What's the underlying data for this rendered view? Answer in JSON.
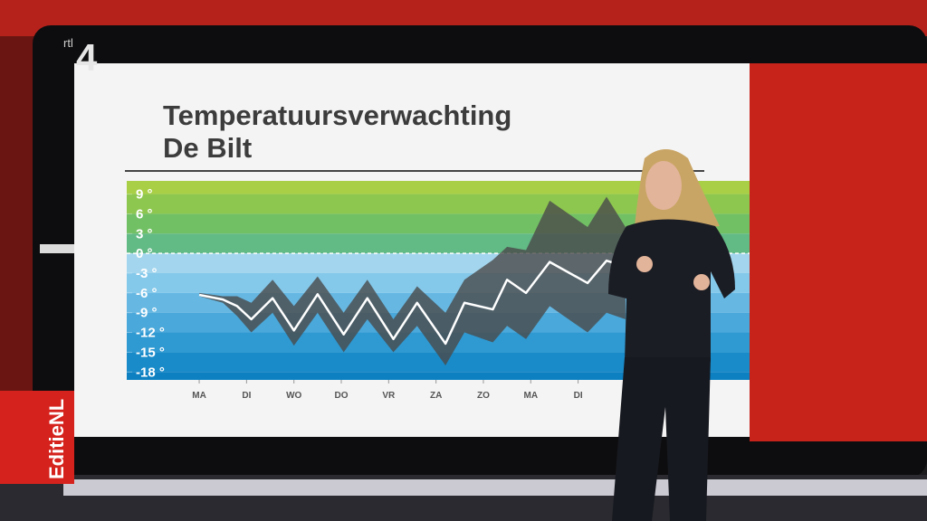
{
  "channel_logo": "rtl",
  "channel_number": "4",
  "program_badge": "EditieNL",
  "chart_data": {
    "type": "line",
    "title": [
      "Temperatuursverwachting",
      "De Bilt"
    ],
    "xlim": [
      -1.53,
      11.62
    ],
    "xticks": [
      {
        "value": 0,
        "label": "MA"
      },
      {
        "value": 1,
        "label": "DI"
      },
      {
        "value": 2,
        "label": "WO"
      },
      {
        "value": 3,
        "label": "DO"
      },
      {
        "value": 4,
        "label": "VR"
      },
      {
        "value": 5,
        "label": "ZA"
      },
      {
        "value": 6,
        "label": "ZO"
      },
      {
        "value": 7,
        "label": "MA"
      },
      {
        "value": 8,
        "label": "DI"
      }
    ],
    "ylim": [
      -19.2,
      11
    ],
    "yticks": [
      {
        "value": 9,
        "label": "9 °"
      },
      {
        "value": 6,
        "label": "6 °"
      },
      {
        "value": 3,
        "label": "3 °"
      },
      {
        "value": 0,
        "label": "0 °"
      },
      {
        "value": -3,
        "label": "-3 °"
      },
      {
        "value": -6,
        "label": "-6 °"
      },
      {
        "value": -9,
        "label": "-9 °"
      },
      {
        "value": -12,
        "label": "-12 °"
      },
      {
        "value": -15,
        "label": "-15 °"
      },
      {
        "value": -18,
        "label": "-18 °"
      }
    ],
    "band_colors": [
      "#a8cf45",
      "#8ec74f",
      "#72c064",
      "#62ba85",
      "#a3d6ee",
      "#84c8ea",
      "#66b8e3",
      "#4aa8da",
      "#2f99d2",
      "#1a8bc9",
      "#0d80c2"
    ],
    "zero_line": true,
    "x": [
      0,
      0.5,
      0.8,
      1.1,
      1.55,
      2.0,
      2.5,
      3.05,
      3.55,
      4.1,
      4.6,
      5.2,
      5.6,
      6.2,
      6.5,
      6.9,
      7.4,
      8.2,
      8.6,
      9.0
    ],
    "series": [
      {
        "role": "range",
        "color": "#4a4a4a",
        "high": [
          -6,
          -6.5,
          -6.5,
          -7.5,
          -4,
          -8,
          -3.5,
          -9,
          -4,
          -10,
          -5,
          -9,
          -4,
          -1,
          1,
          0.5,
          8,
          4,
          8.6,
          4
        ],
        "low": [
          -6.5,
          -7.5,
          -9.5,
          -12,
          -9,
          -14,
          -9,
          -15,
          -10,
          -15,
          -11,
          -17,
          -12,
          -13.5,
          -11,
          -13,
          -8,
          -12,
          -9,
          -10
        ]
      },
      {
        "role": "median",
        "color": "#ffffff",
        "values": [
          -6.3,
          -7,
          -8,
          -10,
          -6.8,
          -11.7,
          -6.2,
          -12.3,
          -6.8,
          -13,
          -7.5,
          -13.7,
          -7.5,
          -8.5,
          -4,
          -6,
          -1.3,
          -4.5,
          -1.1,
          -2
        ]
      }
    ]
  }
}
